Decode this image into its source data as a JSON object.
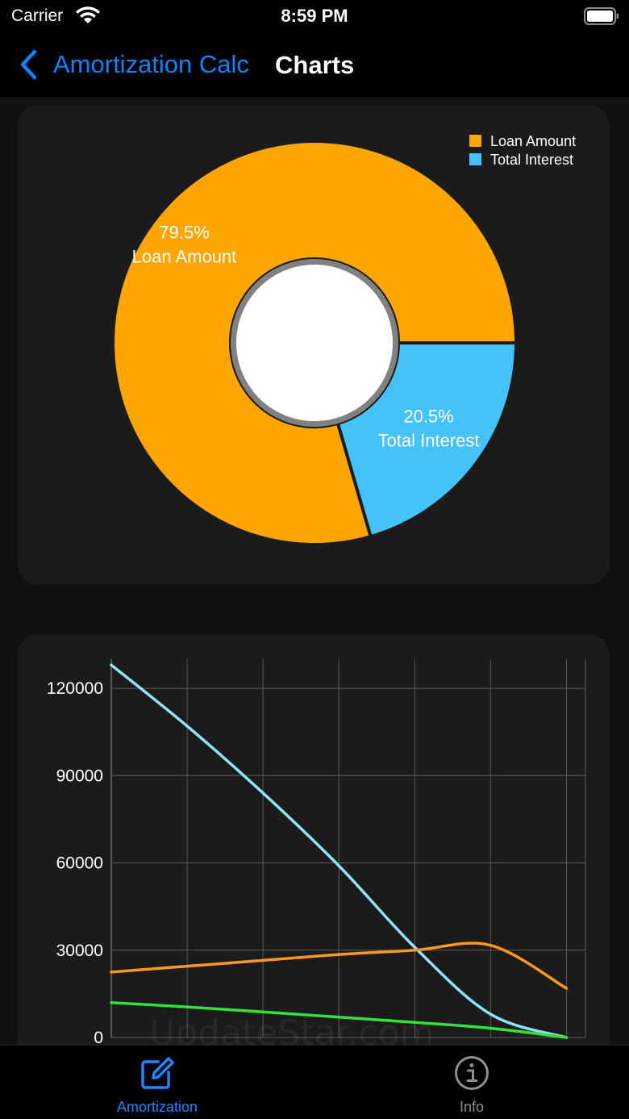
{
  "status_bar": {
    "carrier": "Carrier",
    "time": "8:59 PM"
  },
  "nav": {
    "back_label": "Amortization Calc",
    "title": "Charts"
  },
  "chart_data": [
    {
      "type": "pie",
      "donut": true,
      "legend": {
        "placement": "top-right",
        "entries": [
          {
            "name": "Loan Amount",
            "color": "#ffa500"
          },
          {
            "name": "Total Interest",
            "color": "#45c3f9"
          }
        ]
      },
      "slices": [
        {
          "name": "Loan Amount",
          "value": 79.5,
          "label": "79.5%",
          "sublabel": "Loan Amount",
          "color": "#ffa500"
        },
        {
          "name": "Total Interest",
          "value": 20.5,
          "label": "20.5%",
          "sublabel": "Total Interest",
          "color": "#45c3f9"
        }
      ]
    },
    {
      "type": "line",
      "x": [
        0,
        1,
        2,
        3,
        4,
        5,
        6
      ],
      "ylim": [
        0,
        130000
      ],
      "xlim": [
        0,
        6.25
      ],
      "grid": true,
      "yticks": [
        0,
        30000,
        60000,
        90000,
        120000
      ],
      "ytick_labels": [
        "0",
        "30000",
        "60000",
        "90000",
        "120000"
      ],
      "series": [
        {
          "color": "#8fe3f5",
          "values": [
            128000,
            107000,
            84000,
            59000,
            31000,
            8000,
            0
          ]
        },
        {
          "color": "#ff9820",
          "values": [
            22500,
            24500,
            26500,
            28500,
            30000,
            31700,
            16900
          ]
        },
        {
          "color": "#2fe33b",
          "values": [
            12000,
            10500,
            8800,
            7000,
            5200,
            3200,
            0
          ]
        }
      ]
    }
  ],
  "tabs": [
    {
      "label": "Amortization",
      "icon": "compose-icon",
      "active": true
    },
    {
      "label": "Info",
      "icon": "info-icon",
      "active": false
    }
  ],
  "watermark": "UpdateStar.com",
  "colors": {
    "accent": "#0a84ff",
    "card": "#1b1b1b",
    "background": "#111111"
  }
}
